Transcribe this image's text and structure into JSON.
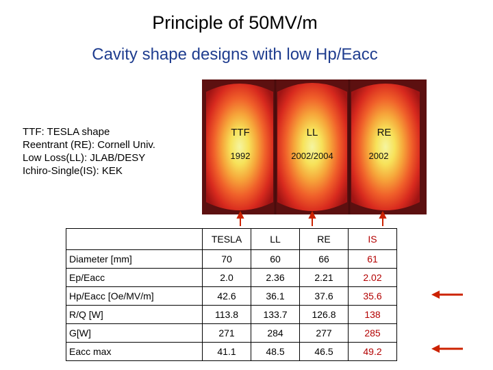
{
  "slide": {
    "title": "Principle of 50MV/m",
    "subtitle": "Cavity shape designs with low Hp/Eacc"
  },
  "legend": [
    "TTF: TESLA shape",
    "Reentrant (RE): Cornell Univ.",
    "Low Loss(LL): JLAB/DESY",
    "Ichiro-Single(IS): KEK"
  ],
  "cavities": [
    {
      "name": "TTF",
      "year": "1992"
    },
    {
      "name": "LL",
      "year": "2002/2004"
    },
    {
      "name": "RE",
      "year": "2002"
    }
  ],
  "table": {
    "columns": [
      "TESLA",
      "LL",
      "RE",
      "IS"
    ],
    "rows": [
      {
        "label": "Diameter [mm]",
        "values": [
          "70",
          "60",
          "66",
          "61"
        ]
      },
      {
        "label": "Ep/Eacc",
        "values": [
          "2.0",
          "2.36",
          "2.21",
          "2.02"
        ]
      },
      {
        "label": "Hp/Eacc [Oe/MV/m]",
        "values": [
          "42.6",
          "36.1",
          "37.6",
          "35.6"
        ]
      },
      {
        "label": "R/Q [W]",
        "values": [
          "113.8",
          "133.7",
          "126.8",
          "138"
        ]
      },
      {
        "label": "G[W]",
        "values": [
          "271",
          "284",
          "277",
          "285"
        ]
      },
      {
        "label": "Eacc max",
        "values": [
          "41.1",
          "48.5",
          "46.5",
          "49.2"
        ]
      }
    ]
  },
  "colors": {
    "subtitle": "#1f3d8f",
    "highlight_column": "#b30000",
    "arrow": "#cc2200"
  }
}
